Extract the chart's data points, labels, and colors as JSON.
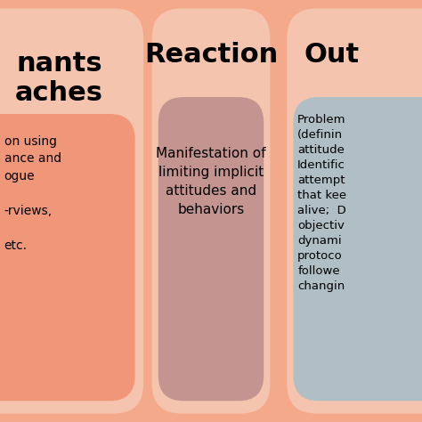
{
  "fig_bg": "#F4A98A",
  "col1": {
    "outer_color": "#F4C4AF",
    "inner_color": "#F0977A",
    "header": "nants\naches",
    "body_text": "on using\nance and\nogue\n\n-rviews,\n\netc."
  },
  "col2": {
    "outer_color": "#F4C4AF",
    "inner_color": "#C49490",
    "header": "Reaction",
    "body_text": "Manifestation of\nlimiting implicit\nattitudes and\nbehaviors"
  },
  "col3": {
    "outer_color": "#F4C4AF",
    "inner_color": "#B0BEC5",
    "header": "Out",
    "body_text": "Problem\n(definin\nattitude\nIdentific\nattempt\nthat kee\nalive;  D\nobjectiv\ndynami\nprotoco\nfollowe\nchangin"
  }
}
